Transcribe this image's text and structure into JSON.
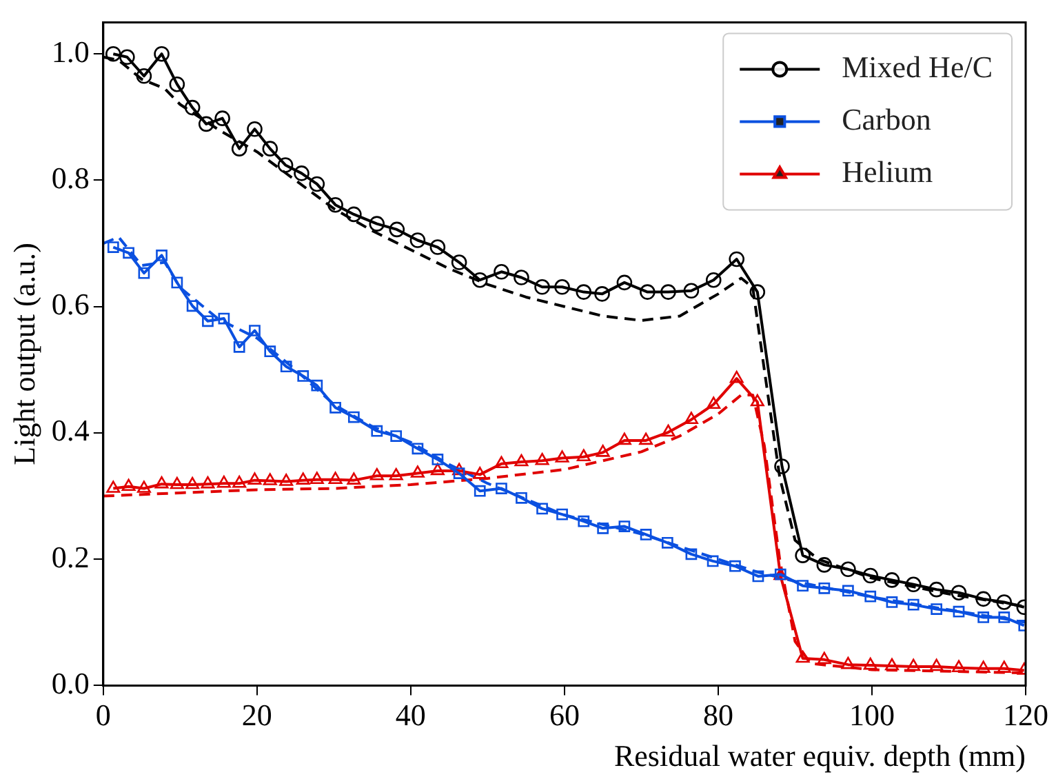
{
  "chart_data": {
    "type": "line",
    "xlabel": "Residual water equiv. depth (mm)",
    "ylabel": "Light output (a.u.)",
    "xlim": [
      0,
      120
    ],
    "ylim": [
      0,
      1.05
    ],
    "xticks": [
      0,
      20,
      40,
      60,
      80,
      100,
      120
    ],
    "yticks": [
      {
        "value": 0,
        "label": "0.0"
      },
      0.2,
      0.4,
      0.6,
      0.8,
      {
        "value": 1,
        "label": "1.0"
      }
    ],
    "legend": "top right",
    "series": [
      {
        "name": "Mixed He/C",
        "color": "#000000",
        "marker": "circle",
        "line_style": "solid",
        "x": [
          1.3,
          3.1,
          5.3,
          7.6,
          9.6,
          11.6,
          13.4,
          15.5,
          17.7,
          19.7,
          21.7,
          23.7,
          25.8,
          27.8,
          30.2,
          32.6,
          35.6,
          38.2,
          40.9,
          43.5,
          46.3,
          49,
          51.8,
          54.4,
          57.1,
          59.7,
          62.5,
          64.9,
          67.8,
          70.8,
          73.5,
          76.5,
          79.4,
          82.4,
          85.1,
          88.3,
          91,
          93.8,
          96.9,
          99.8,
          102.6,
          105.4,
          108.4,
          111.3,
          114.5,
          117.2,
          119.8
        ],
        "values": [
          1.0,
          0.995,
          0.965,
          1.0,
          0.952,
          0.915,
          0.889,
          0.898,
          0.85,
          0.881,
          0.85,
          0.824,
          0.811,
          0.794,
          0.761,
          0.746,
          0.731,
          0.722,
          0.705,
          0.694,
          0.67,
          0.642,
          0.655,
          0.646,
          0.631,
          0.631,
          0.623,
          0.62,
          0.638,
          0.623,
          0.623,
          0.625,
          0.642,
          0.675,
          0.623,
          0.347,
          0.206,
          0.191,
          0.184,
          0.174,
          0.167,
          0.16,
          0.152,
          0.147,
          0.137,
          0.132,
          0.124
        ]
      },
      {
        "name": "Carbon",
        "color": "#0b50e0",
        "marker": "square",
        "line_style": "solid",
        "x": [
          1.3,
          3.3,
          5.3,
          7.6,
          9.6,
          11.6,
          13.6,
          15.7,
          17.7,
          19.7,
          21.7,
          23.8,
          26,
          27.8,
          30.2,
          32.6,
          35.6,
          38.1,
          40.9,
          43.5,
          46.3,
          49,
          51.8,
          54.4,
          57.1,
          59.7,
          62.5,
          65,
          67.8,
          70.6,
          73.4,
          76.5,
          79.3,
          82.2,
          85.2,
          88.1,
          91,
          93.8,
          96.9,
          99.8,
          102.6,
          105.4,
          108.4,
          111.3,
          114.5,
          117.2,
          119.8
        ],
        "values": [
          0.694,
          0.685,
          0.653,
          0.681,
          0.638,
          0.601,
          0.577,
          0.581,
          0.536,
          0.562,
          0.529,
          0.505,
          0.49,
          0.475,
          0.44,
          0.425,
          0.403,
          0.395,
          0.375,
          0.358,
          0.336,
          0.308,
          0.312,
          0.297,
          0.28,
          0.271,
          0.26,
          0.249,
          0.252,
          0.239,
          0.226,
          0.208,
          0.197,
          0.189,
          0.173,
          0.176,
          0.158,
          0.154,
          0.15,
          0.141,
          0.132,
          0.128,
          0.121,
          0.117,
          0.108,
          0.108,
          0.095
        ]
      },
      {
        "name": "Helium",
        "color": "#e00000",
        "marker": "triangle",
        "line_style": "solid",
        "x": [
          1.3,
          3.3,
          5.3,
          7.6,
          9.6,
          11.6,
          13.6,
          15.7,
          17.7,
          19.7,
          21.7,
          23.8,
          26,
          27.8,
          30.2,
          32.6,
          35.6,
          38.1,
          40.9,
          43.5,
          46.3,
          49,
          51.8,
          54.4,
          57.1,
          59.7,
          62.5,
          65,
          67.8,
          70.6,
          73.5,
          76.5,
          79.4,
          82.4,
          85.1,
          88.1,
          91,
          93.8,
          96.9,
          99.8,
          102.6,
          105.4,
          108.4,
          111.3,
          114.5,
          117.2,
          119.8
        ],
        "values": [
          0.312,
          0.315,
          0.312,
          0.319,
          0.318,
          0.318,
          0.319,
          0.32,
          0.32,
          0.325,
          0.324,
          0.323,
          0.325,
          0.326,
          0.326,
          0.325,
          0.332,
          0.332,
          0.336,
          0.34,
          0.34,
          0.334,
          0.351,
          0.354,
          0.356,
          0.36,
          0.362,
          0.369,
          0.388,
          0.388,
          0.401,
          0.421,
          0.445,
          0.486,
          0.449,
          0.174,
          0.043,
          0.041,
          0.033,
          0.032,
          0.031,
          0.03,
          0.03,
          0.028,
          0.027,
          0.027,
          0.024
        ]
      },
      {
        "color": "#000000",
        "marker": "none",
        "line_style": "dashed",
        "x": [
          0,
          2,
          5,
          8,
          10,
          15,
          20,
          25,
          30,
          35,
          40,
          45,
          50,
          55,
          60,
          65,
          70,
          75,
          80,
          83,
          84.5,
          86,
          88,
          90,
          93,
          100,
          110,
          120
        ],
        "values": [
          0.995,
          0.99,
          0.96,
          0.945,
          0.92,
          0.88,
          0.845,
          0.8,
          0.755,
          0.72,
          0.69,
          0.66,
          0.635,
          0.615,
          0.6,
          0.585,
          0.578,
          0.585,
          0.62,
          0.645,
          0.63,
          0.5,
          0.33,
          0.23,
          0.2,
          0.17,
          0.145,
          0.125
        ]
      },
      {
        "color": "#0b50e0",
        "marker": "none",
        "line_style": "dashed",
        "x": [
          0,
          2,
          5,
          8,
          10,
          15,
          20,
          25,
          30,
          35,
          40,
          45,
          50,
          55,
          60,
          65,
          70,
          75,
          80,
          85,
          90,
          100,
          110,
          120
        ],
        "values": [
          0.7,
          0.71,
          0.665,
          0.67,
          0.63,
          0.58,
          0.55,
          0.5,
          0.445,
          0.41,
          0.385,
          0.35,
          0.32,
          0.295,
          0.27,
          0.255,
          0.24,
          0.22,
          0.2,
          0.18,
          0.165,
          0.14,
          0.12,
          0.1
        ]
      },
      {
        "color": "#e00000",
        "marker": "none",
        "line_style": "dashed",
        "x": [
          0,
          10,
          20,
          30,
          40,
          50,
          60,
          70,
          75,
          80,
          83,
          84.5,
          86,
          88,
          90,
          92,
          100,
          120
        ],
        "values": [
          0.3,
          0.305,
          0.31,
          0.312,
          0.318,
          0.328,
          0.342,
          0.37,
          0.395,
          0.43,
          0.46,
          0.46,
          0.38,
          0.2,
          0.07,
          0.035,
          0.025,
          0.02
        ]
      }
    ]
  }
}
